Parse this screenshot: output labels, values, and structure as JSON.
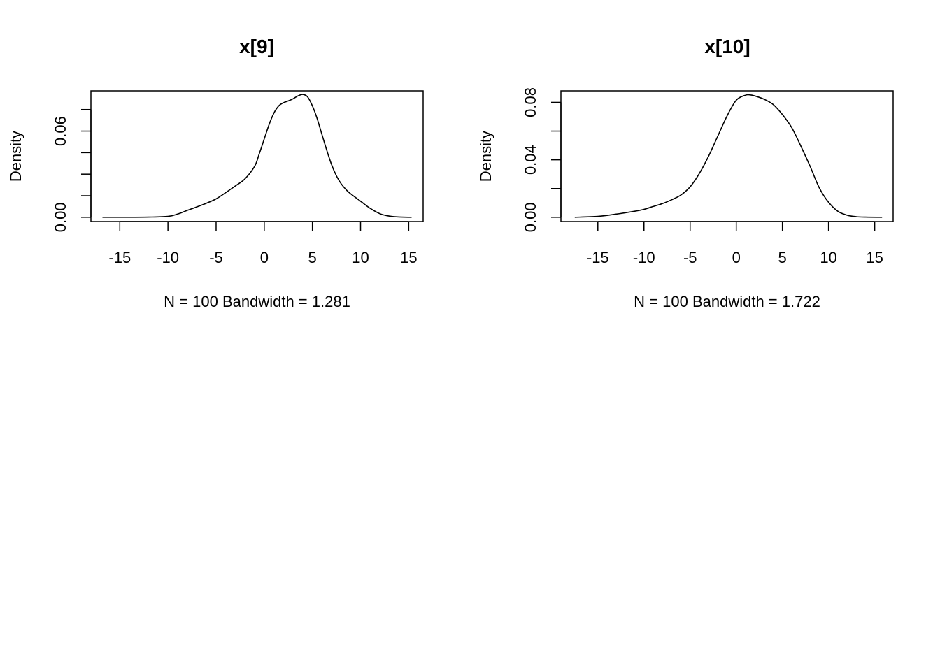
{
  "chart_data": [
    {
      "type": "line",
      "title": "x[9]",
      "xlabel": "N = 100   Bandwidth = 1.281",
      "ylabel": "Density",
      "xlim": [
        -18,
        16.5
      ],
      "ylim": [
        -0.003,
        0.088
      ],
      "x_ticks": [
        -15,
        -10,
        -5,
        0,
        5,
        10,
        15
      ],
      "x_tick_labels": [
        "-15",
        "-10",
        "-5",
        "0",
        "5",
        "10",
        "15"
      ],
      "y_ticks": [
        0.0,
        0.015,
        0.03,
        0.045,
        0.06,
        0.075
      ],
      "y_tick_labels": [
        "0.00",
        "",
        "",
        "",
        "0.06",
        ""
      ],
      "grid": false,
      "series": [
        {
          "x": [
            -16.8,
            -14,
            -12,
            -10,
            -9,
            -8,
            -7,
            -6,
            -5,
            -4,
            -3,
            -2,
            -1,
            -0.5,
            0,
            0.5,
            1,
            1.5,
            2,
            2.5,
            3,
            3.5,
            4,
            4.5,
            5,
            5.5,
            6,
            6.5,
            7,
            7.5,
            8,
            8.5,
            9,
            10,
            11,
            12,
            13,
            14,
            15.3
          ],
          "y": [
            0.0,
            0.0,
            0.0001,
            0.0006,
            0.0022,
            0.0048,
            0.0072,
            0.0098,
            0.0128,
            0.0172,
            0.0218,
            0.0268,
            0.0355,
            0.0445,
            0.0545,
            0.0645,
            0.0725,
            0.0775,
            0.0798,
            0.081,
            0.0825,
            0.0845,
            0.0855,
            0.0838,
            0.0775,
            0.0685,
            0.0575,
            0.0465,
            0.0365,
            0.0288,
            0.0232,
            0.0192,
            0.0162,
            0.0112,
            0.0062,
            0.0025,
            0.0008,
            0.0002,
            0.0
          ]
        }
      ]
    },
    {
      "type": "line",
      "title": "x[10]",
      "xlabel": "N = 100   Bandwidth = 1.722",
      "ylabel": "Density",
      "xlim": [
        -19,
        17
      ],
      "ylim": [
        -0.003,
        0.088
      ],
      "x_ticks": [
        -15,
        -10,
        -5,
        0,
        5,
        10,
        15
      ],
      "x_tick_labels": [
        "-15",
        "-10",
        "-5",
        "0",
        "5",
        "10",
        "15"
      ],
      "y_ticks": [
        0.0,
        0.02,
        0.04,
        0.06,
        0.08
      ],
      "y_tick_labels": [
        "0.00",
        "",
        "0.04",
        "",
        "0.08"
      ],
      "grid": false,
      "series": [
        {
          "x": [
            -17.5,
            -15,
            -13,
            -11,
            -10,
            -9,
            -8,
            -7,
            -6,
            -5,
            -4,
            -3,
            -2,
            -1,
            0,
            1,
            1.5,
            2,
            3,
            4,
            5,
            6,
            7,
            8,
            9,
            10,
            11,
            12,
            13,
            14,
            15.8
          ],
          "y": [
            0.0,
            0.0006,
            0.0022,
            0.0042,
            0.0055,
            0.0075,
            0.0095,
            0.0122,
            0.0155,
            0.0212,
            0.0305,
            0.0425,
            0.0565,
            0.0705,
            0.0815,
            0.085,
            0.0852,
            0.0845,
            0.0822,
            0.0785,
            0.0715,
            0.0625,
            0.0495,
            0.0355,
            0.0205,
            0.0105,
            0.0042,
            0.0015,
            0.0004,
            0.0001,
            0.0
          ]
        }
      ]
    }
  ]
}
